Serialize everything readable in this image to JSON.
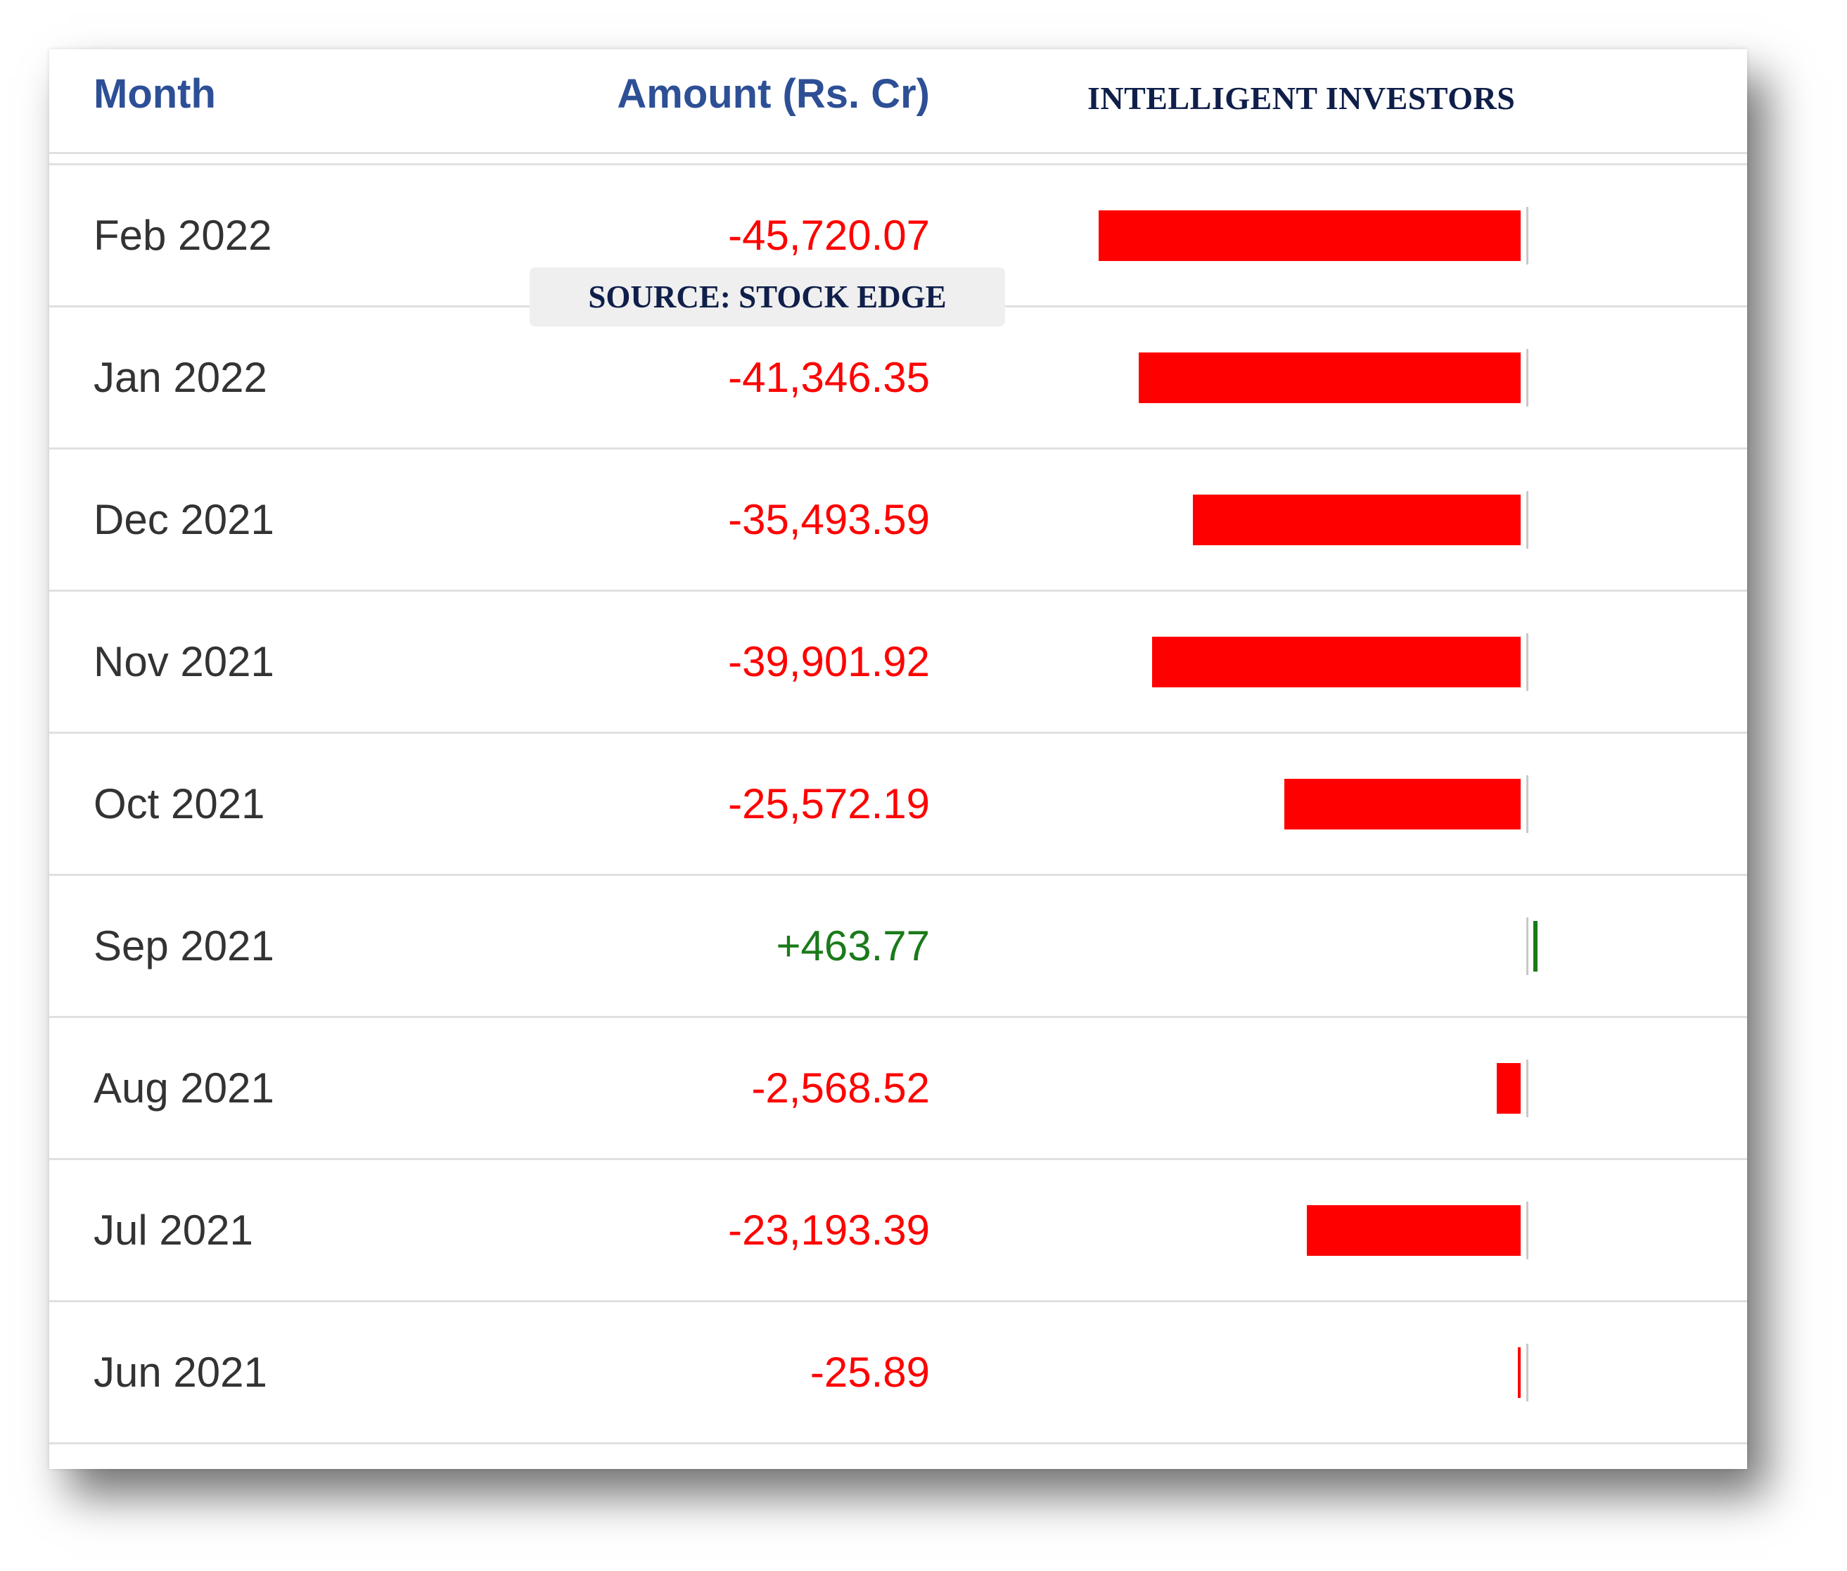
{
  "header": {
    "month_label": "Month",
    "amount_label": "Amount (Rs. Cr)",
    "brand": "INTELLIGENT INVESTORS"
  },
  "source_label": "SOURCE: STOCK EDGE",
  "colors": {
    "negative": "#ff0000",
    "positive": "#1a7a1a",
    "header_text": "#2d4f96",
    "brand_text": "#0f1f4a"
  },
  "chart_data": {
    "type": "bar",
    "categories": [
      "Feb 2022",
      "Jan 2022",
      "Dec 2021",
      "Nov 2021",
      "Oct 2021",
      "Sep 2021",
      "Aug 2021",
      "Jul 2021",
      "Jun 2021"
    ],
    "values": [
      -45720.07,
      -41346.35,
      -35493.59,
      -39901.92,
      -25572.19,
      463.77,
      -2568.52,
      -23193.39,
      -25.89
    ],
    "labels": [
      "-45,720.07",
      "-41,346.35",
      "-35,493.59",
      "-39,901.92",
      "-25,572.19",
      "+463.77",
      "-2,568.52",
      "-23,193.39",
      "-25.89"
    ],
    "xlabel": "Month",
    "ylabel": "Amount (Rs. Cr)"
  }
}
